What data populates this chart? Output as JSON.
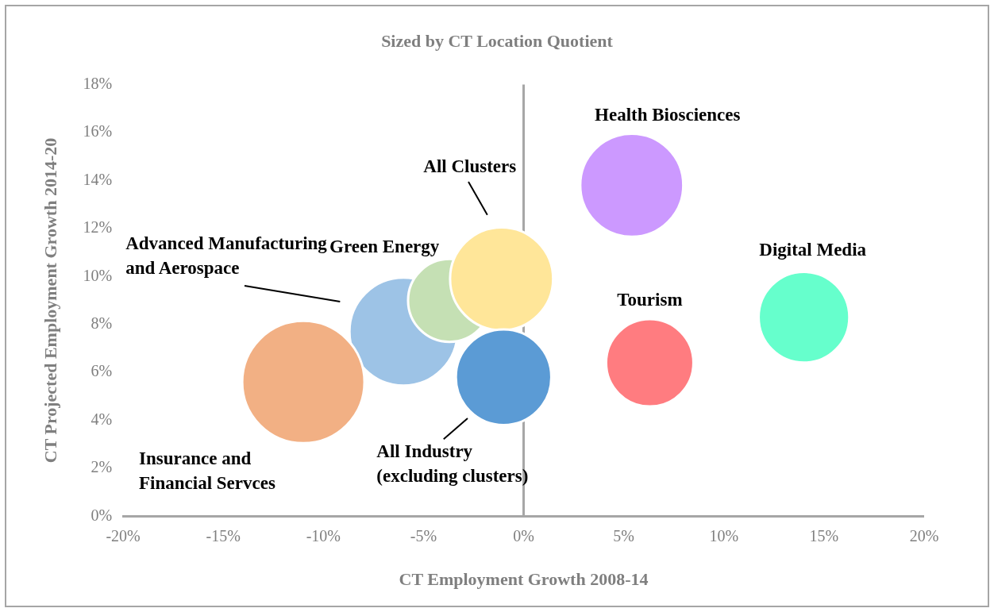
{
  "chart_data": {
    "type": "bubble",
    "title": "Sized by CT Location Quotient",
    "xlabel": "CT Employment Growth 2008-14",
    "ylabel": "CT Projected Employment Growth 2014-20",
    "xlim": [
      -20,
      20
    ],
    "xticks": [
      {
        "value": -20,
        "label": "-20%"
      },
      {
        "value": -15,
        "label": "-15%"
      },
      {
        "value": -10,
        "label": "-10%"
      },
      {
        "value": -5,
        "label": "-5%"
      },
      {
        "value": 0,
        "label": "0%"
      },
      {
        "value": 5,
        "label": "5%"
      },
      {
        "value": 10,
        "label": "10%"
      },
      {
        "value": 15,
        "label": "15%"
      },
      {
        "value": 20,
        "label": "20%"
      }
    ],
    "ylim": [
      0,
      18
    ],
    "yticks": [
      {
        "value": 0,
        "label": "0%"
      },
      {
        "value": 2,
        "label": "2%"
      },
      {
        "value": 4,
        "label": "4%"
      },
      {
        "value": 6,
        "label": "6%"
      },
      {
        "value": 8,
        "label": "8%"
      },
      {
        "value": 10,
        "label": "10%"
      },
      {
        "value": 12,
        "label": "12%"
      },
      {
        "value": 14,
        "label": "14%"
      },
      {
        "value": 16,
        "label": "16%"
      },
      {
        "value": 18,
        "label": "18%"
      }
    ],
    "grid": false,
    "legend": false,
    "ref_lines": [
      {
        "axis": "x",
        "value": 0,
        "color": "#a6a6a6"
      }
    ],
    "series": [
      {
        "name": "Insurance and Financial Servces",
        "color": "#f2b084",
        "x": [
          -11.0
        ],
        "values": [
          5.6
        ],
        "sizes": [
          1
        ]
      },
      {
        "name": "All Industry (excluding clusters)",
        "color": "#5b9bd5",
        "x": [
          -1.0
        ],
        "values": [
          5.8
        ],
        "sizes": [
          0.61
        ]
      },
      {
        "name": "All Clusters",
        "color": "#ffe699",
        "x": [
          -1.1
        ],
        "values": [
          9.9
        ],
        "sizes": [
          0.71
        ]
      },
      {
        "name": "Green Energy",
        "color": "#c5e0b4",
        "x": [
          -3.7
        ],
        "values": [
          9.0
        ],
        "sizes": [
          0.46
        ]
      },
      {
        "name": "Advanced Manufacturing and Aerospace",
        "color": "#9dc3e6",
        "x": [
          -6.0
        ],
        "values": [
          7.7
        ],
        "sizes": [
          0.78
        ]
      },
      {
        "name": "Health Biosciences",
        "color": "#cc99ff",
        "x": [
          5.4
        ],
        "values": [
          13.8
        ],
        "sizes": [
          0.71
        ]
      },
      {
        "name": "Tourism",
        "color": "#ff7c80",
        "x": [
          6.3
        ],
        "values": [
          6.4
        ],
        "sizes": [
          0.51
        ]
      },
      {
        "name": "Digital Media",
        "color": "#66ffcc",
        "x": [
          14.0
        ],
        "values": [
          8.3
        ],
        "sizes": [
          0.55
        ]
      }
    ]
  }
}
